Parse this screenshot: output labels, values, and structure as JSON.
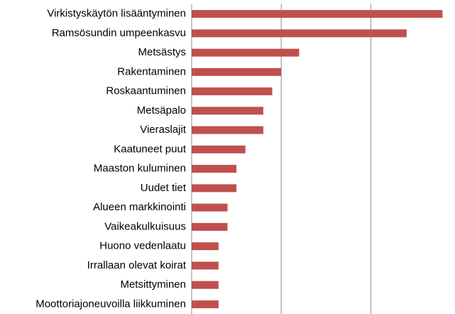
{
  "chart_data": {
    "type": "hbar",
    "categories": [
      "Virkistyskäytön lisääntyminen",
      "Ramsösundin umpeenkasvu",
      "Metsästys",
      "Rakentaminen",
      "Roskaantuminen",
      "Metsäpalo",
      "Vieraslajit",
      "Kaatuneet puut",
      "Maaston kuluminen",
      "Uudet tiet",
      "Alueen markkinointi",
      "Vaikeakulkuisuus",
      "Huono vedenlaatu",
      "Irrallaan olevat koirat",
      "Metsittyminen",
      "Moottoriajoneuvoilla liikkuminen"
    ],
    "values": [
      28,
      24,
      12,
      10,
      9,
      8,
      8,
      6,
      5,
      5,
      4,
      4,
      3,
      3,
      3,
      3
    ],
    "color": "#c0504d",
    "xlim": [
      0,
      29.4
    ],
    "xticks": [
      0,
      10,
      20
    ],
    "grid": true
  }
}
